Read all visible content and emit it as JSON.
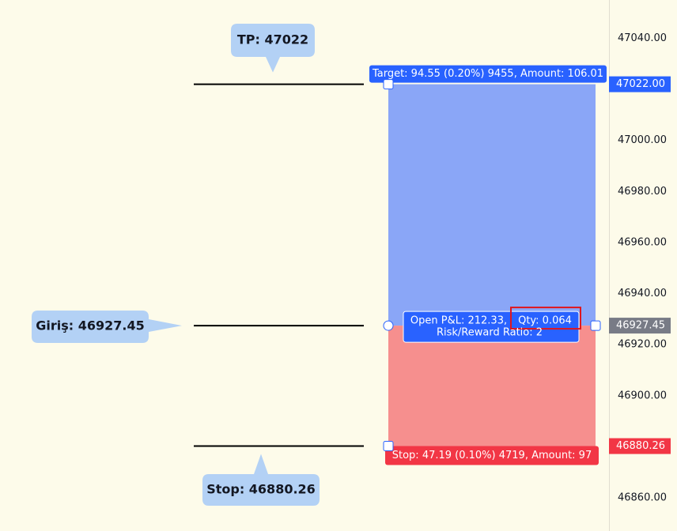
{
  "callouts": {
    "tp": "TP: 47022",
    "entry": "Giriş: 46927.45",
    "stop": "Stop: 46880.26"
  },
  "position": {
    "target_label": "Target: 94.55 (0.20%) 9455, Amount: 106.01",
    "stop_label": "Stop: 47.19 (0.10%) 4719, Amount: 97",
    "pnl": "Open P&L: 212.33,",
    "qty": "Qty: 0.064",
    "rr": "Risk/Reward Ratio: 2"
  },
  "price_axis": {
    "ylim": [
      46847,
      47055
    ],
    "yticks": [
      {
        "value": 46860,
        "label": "46860.00"
      },
      {
        "value": 46900,
        "label": "46900.00"
      },
      {
        "value": 46920,
        "label": "46920.00"
      },
      {
        "value": 46940,
        "label": "46940.00"
      },
      {
        "value": 46960,
        "label": "46960.00"
      },
      {
        "value": 46980,
        "label": "46980.00"
      },
      {
        "value": 47000,
        "label": "47000.00"
      },
      {
        "value": 47040,
        "label": "47040.00"
      }
    ],
    "badges": {
      "target": {
        "value": 47022,
        "label": "47022.00"
      },
      "entry": 46927.45,
      "stop": 46880.26
    }
  }
}
